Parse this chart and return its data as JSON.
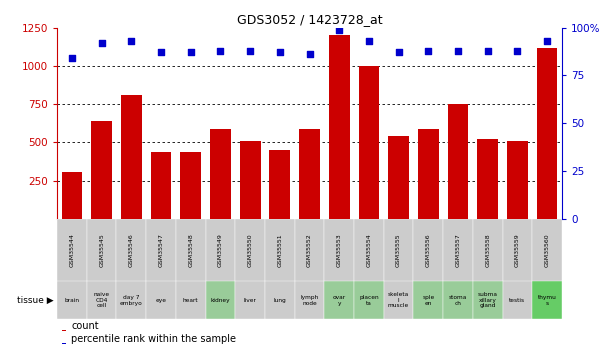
{
  "title": "GDS3052 / 1423728_at",
  "gsm_labels": [
    "GSM35544",
    "GSM35545",
    "GSM35546",
    "GSM35547",
    "GSM35548",
    "GSM35549",
    "GSM35550",
    "GSM35551",
    "GSM35552",
    "GSM35553",
    "GSM35554",
    "GSM35555",
    "GSM35556",
    "GSM35557",
    "GSM35558",
    "GSM35559",
    "GSM35560"
  ],
  "tissue_labels": [
    "brain",
    "naive\nCD4\ncell",
    "day 7\nembryо",
    "eye",
    "heart",
    "kidney",
    "liver",
    "lung",
    "lymph\nnode",
    "ovar\ny",
    "placen\nta",
    "skeleta\nl\nmuscle",
    "sple\nen",
    "stoma\nch",
    "subma\nxillary\ngland",
    "testis",
    "thymu\ns"
  ],
  "tissue_green": [
    false,
    false,
    false,
    false,
    false,
    true,
    false,
    false,
    false,
    true,
    true,
    false,
    true,
    true,
    true,
    false,
    true
  ],
  "bar_values": [
    310,
    640,
    810,
    440,
    440,
    590,
    510,
    450,
    590,
    1200,
    1000,
    540,
    590,
    750,
    520,
    510,
    1120
  ],
  "dot_values_pct": [
    84,
    92,
    93,
    87,
    87,
    88,
    88,
    87,
    86,
    99,
    93,
    87,
    88,
    88,
    88,
    88,
    93
  ],
  "bar_color": "#cc0000",
  "dot_color": "#0000cc",
  "ylim_left": [
    0,
    1250
  ],
  "ylim_right": [
    0,
    100
  ],
  "yticks_left": [
    250,
    500,
    750,
    1000,
    1250
  ],
  "yticks_right": [
    0,
    25,
    50,
    75,
    100
  ],
  "ytick_right_labels": [
    "0",
    "25",
    "50",
    "75",
    "100%"
  ],
  "grid_values": [
    250,
    500,
    750,
    1000
  ],
  "bg_color": "#ffffff",
  "header_bg": "#cccccc",
  "tissue_bg_gray": "#cccccc",
  "tissue_bg_green": "#99cc99",
  "tissue_bg_bright_green": "#66cc66"
}
